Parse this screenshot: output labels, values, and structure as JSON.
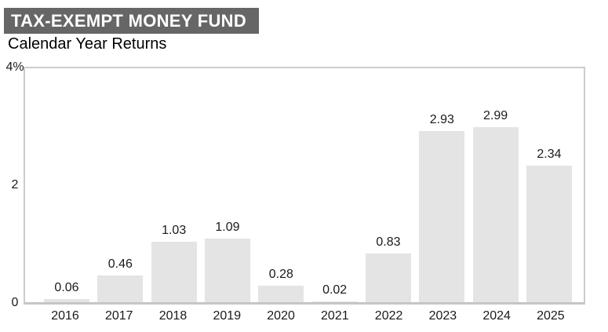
{
  "header": {
    "title": "TAX-EXEMPT MONEY FUND",
    "subtitle": "Calendar Year Returns"
  },
  "chart_data": {
    "type": "bar",
    "title": "TAX-EXEMPT MONEY FUND",
    "subtitle": "Calendar Year Returns",
    "categories": [
      "2016",
      "2017",
      "2018",
      "2019",
      "2020",
      "2021",
      "2022",
      "2023",
      "2024",
      "2025"
    ],
    "values": [
      0.06,
      0.46,
      1.03,
      1.09,
      0.28,
      0.02,
      0.83,
      2.93,
      2.99,
      2.34
    ],
    "value_labels": [
      "0.06",
      "0.46",
      "1.03",
      "1.09",
      "0.28",
      "0.02",
      "0.83",
      "2.93",
      "2.99",
      "2.34"
    ],
    "xlabel": "",
    "ylabel": "",
    "ylim": [
      0,
      4
    ],
    "yticks": [
      {
        "value": 0,
        "label": "0"
      },
      {
        "value": 2,
        "label": "2"
      },
      {
        "value": 4,
        "label": "4%"
      }
    ],
    "grid": false,
    "legend": "none",
    "bar_color": "#e4e4e4"
  },
  "colors": {
    "title_bar_bg": "#666666",
    "title_text": "#ffffff",
    "text": "#1a1a1a",
    "bar_fill": "#e4e4e4",
    "axis_border": "#cccccc",
    "axis_baseline": "#c6c6c6",
    "background": "#ffffff"
  }
}
